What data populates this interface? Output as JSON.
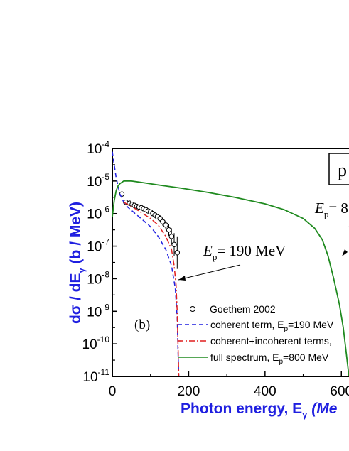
{
  "chart_data": {
    "type": "line",
    "panel_label": "(b)",
    "xlabel": "Photon energy, Eγ (Me",
    "xlabel_parts": {
      "main": "Photon energy, E",
      "sub": "γ",
      "tail": " (Me"
    },
    "ylabel_parts": {
      "main": "dσ / dE",
      "sub": "γ",
      "tail": " (b / MeV)"
    },
    "xlim": [
      0,
      620
    ],
    "ylim_log10": [
      -11,
      -4
    ],
    "y_scale": "log",
    "x_ticks": [
      {
        "value": 0,
        "label": "0"
      },
      {
        "value": 200,
        "label": "200"
      },
      {
        "value": 400,
        "label": "400"
      },
      {
        "value": 600,
        "label": "600"
      }
    ],
    "y_ticks": [
      {
        "exp": -4,
        "base": "10",
        "sup": "-4"
      },
      {
        "exp": -5,
        "base": "10",
        "sup": "-5"
      },
      {
        "exp": -6,
        "base": "10",
        "sup": "-6"
      },
      {
        "exp": -7,
        "base": "10",
        "sup": "-7"
      },
      {
        "exp": -8,
        "base": "10",
        "sup": "-8"
      },
      {
        "exp": -9,
        "base": "10",
        "sup": "-9"
      },
      {
        "exp": -10,
        "base": "10",
        "sup": "-10"
      },
      {
        "exp": -11,
        "base": "10",
        "sup": "-11"
      }
    ],
    "annotations": [
      {
        "id": "ep190",
        "text_main": "E",
        "text_sub": "p",
        "text_tail": "= 190 MeV"
      },
      {
        "id": "ep800",
        "text_main": "E",
        "text_sub": "p",
        "text_tail": "= 8"
      }
    ],
    "boxed_label": "p",
    "series": [
      {
        "name": "Goethem 2002",
        "style": "markers-open-circle",
        "color": "#000000",
        "x": [
          25,
          35,
          45,
          52,
          58,
          64,
          70,
          76,
          82,
          88,
          94,
          100,
          106,
          112,
          118,
          125,
          132,
          140,
          148,
          155,
          162,
          170
        ],
        "log10_y": [
          -5.4,
          -5.65,
          -5.68,
          -5.72,
          -5.75,
          -5.78,
          -5.8,
          -5.82,
          -5.85,
          -5.88,
          -5.92,
          -5.95,
          -6.0,
          -6.05,
          -6.1,
          -6.15,
          -6.25,
          -6.35,
          -6.5,
          -6.7,
          -6.95,
          -7.2
        ],
        "log10_err": [
          0.05,
          0.05,
          0.05,
          0.05,
          0.05,
          0.05,
          0.05,
          0.06,
          0.06,
          0.06,
          0.06,
          0.07,
          0.07,
          0.08,
          0.08,
          0.1,
          0.12,
          0.14,
          0.18,
          0.25,
          0.35,
          0.5
        ]
      },
      {
        "name": "coherent term, E",
        "name_sub": "p",
        "name_tail": "=190 MeV",
        "style": "dashed",
        "color": "#1f1fe0",
        "x": [
          0,
          5,
          10,
          20,
          30,
          40,
          60,
          80,
          100,
          120,
          140,
          155,
          165,
          170,
          172,
          174
        ],
        "log10_y": [
          -4.1,
          -4.5,
          -4.9,
          -5.4,
          -5.65,
          -5.8,
          -6.0,
          -6.2,
          -6.4,
          -6.7,
          -7.1,
          -7.6,
          -8.3,
          -9.2,
          -10.2,
          -11.0
        ]
      },
      {
        "name": "coherent+incoherent terms,",
        "name_sub": "",
        "name_tail": "",
        "style": "dashdot",
        "color": "#e01f1f",
        "x": [
          30,
          40,
          60,
          80,
          100,
          120,
          140,
          155,
          162,
          167,
          170,
          172,
          174
        ],
        "log10_y": [
          -5.65,
          -5.72,
          -5.85,
          -6.0,
          -6.15,
          -6.35,
          -6.7,
          -7.1,
          -7.6,
          -8.2,
          -9.0,
          -10.0,
          -11.0
        ]
      },
      {
        "name": "full spectrum, E",
        "name_sub": "p",
        "name_tail": "=800 MeV",
        "style": "solid",
        "color": "#1f8a1f",
        "x": [
          0,
          5,
          10,
          15,
          20,
          30,
          50,
          80,
          120,
          180,
          250,
          320,
          400,
          450,
          500,
          530,
          550,
          565,
          580,
          595,
          605,
          612,
          618,
          620
        ],
        "log10_y": [
          -6.1,
          -5.6,
          -5.3,
          -5.15,
          -5.08,
          -5.0,
          -5.0,
          -5.05,
          -5.12,
          -5.22,
          -5.35,
          -5.5,
          -5.7,
          -5.88,
          -6.15,
          -6.45,
          -6.8,
          -7.3,
          -8.0,
          -8.8,
          -9.5,
          -10.2,
          -10.8,
          -11.0
        ]
      }
    ]
  }
}
